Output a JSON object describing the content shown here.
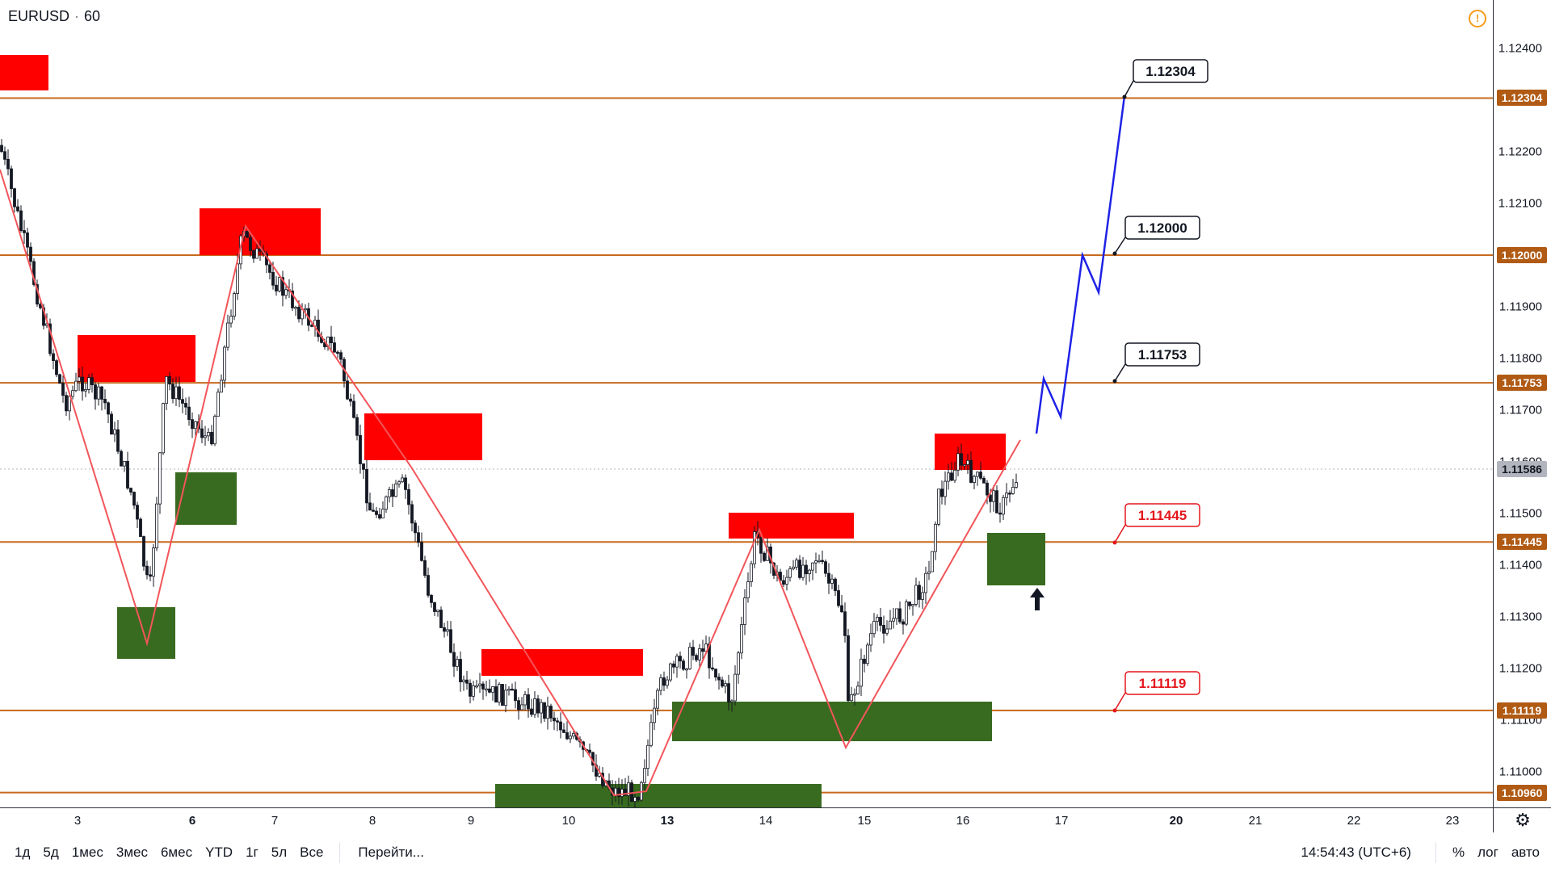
{
  "symbol": {
    "name": "EURUSD",
    "interval": "60"
  },
  "colors": {
    "resistance": "#ff0000",
    "support": "#386b1f",
    "level": "#c8691d",
    "projection": "#1e22e6",
    "zigzag": "#f2555a"
  },
  "price_ticks": [
    "1.12400",
    "1.12300",
    "1.12200",
    "1.12100",
    "1.12000",
    "1.11900",
    "1.11800",
    "1.11700",
    "1.11600",
    "1.11500",
    "1.11400",
    "1.11300",
    "1.11200",
    "1.11100",
    "1.11000"
  ],
  "price_levels": [
    {
      "price": "1.12304",
      "bg": "#b05a14"
    },
    {
      "price": "1.12000",
      "bg": "#b05a14"
    },
    {
      "price": "1.11753",
      "bg": "#b05a14"
    },
    {
      "price": "1.11586",
      "bg": "#b2b5be"
    },
    {
      "price": "1.11445",
      "bg": "#b05a14"
    },
    {
      "price": "1.11119",
      "bg": "#b05a14"
    },
    {
      "price": "1.10960",
      "bg": "#b05a14"
    }
  ],
  "callouts": [
    {
      "text": "1.12304",
      "color": "#131722"
    },
    {
      "text": "1.12000",
      "color": "#131722"
    },
    {
      "text": "1.11753",
      "color": "#131722"
    },
    {
      "text": "1.11445",
      "color": "#e4161d"
    },
    {
      "text": "1.11119",
      "color": "#e4161d"
    }
  ],
  "time_labels": [
    {
      "text": "3",
      "bold": false
    },
    {
      "text": "6",
      "bold": true
    },
    {
      "text": "7",
      "bold": false
    },
    {
      "text": "8",
      "bold": false
    },
    {
      "text": "9",
      "bold": false
    },
    {
      "text": "10",
      "bold": false
    },
    {
      "text": "13",
      "bold": true
    },
    {
      "text": "14",
      "bold": false
    },
    {
      "text": "15",
      "bold": false
    },
    {
      "text": "16",
      "bold": false
    },
    {
      "text": "17",
      "bold": false
    },
    {
      "text": "20",
      "bold": true
    },
    {
      "text": "21",
      "bold": false
    },
    {
      "text": "22",
      "bold": false
    },
    {
      "text": "23",
      "bold": false
    }
  ],
  "range_buttons": [
    "1д",
    "5д",
    "1мес",
    "3мес",
    "6мес",
    "YTD",
    "1г",
    "5л",
    "Все"
  ],
  "goto_label": "Перейти...",
  "clock": "14:54:43 (UTC+6)",
  "toggles": {
    "percent": "%",
    "log": "лог",
    "auto": "авто"
  },
  "icons": {
    "alert": "alert-icon",
    "settings": "gear-icon",
    "arrow": "arrow-up-icon"
  }
}
